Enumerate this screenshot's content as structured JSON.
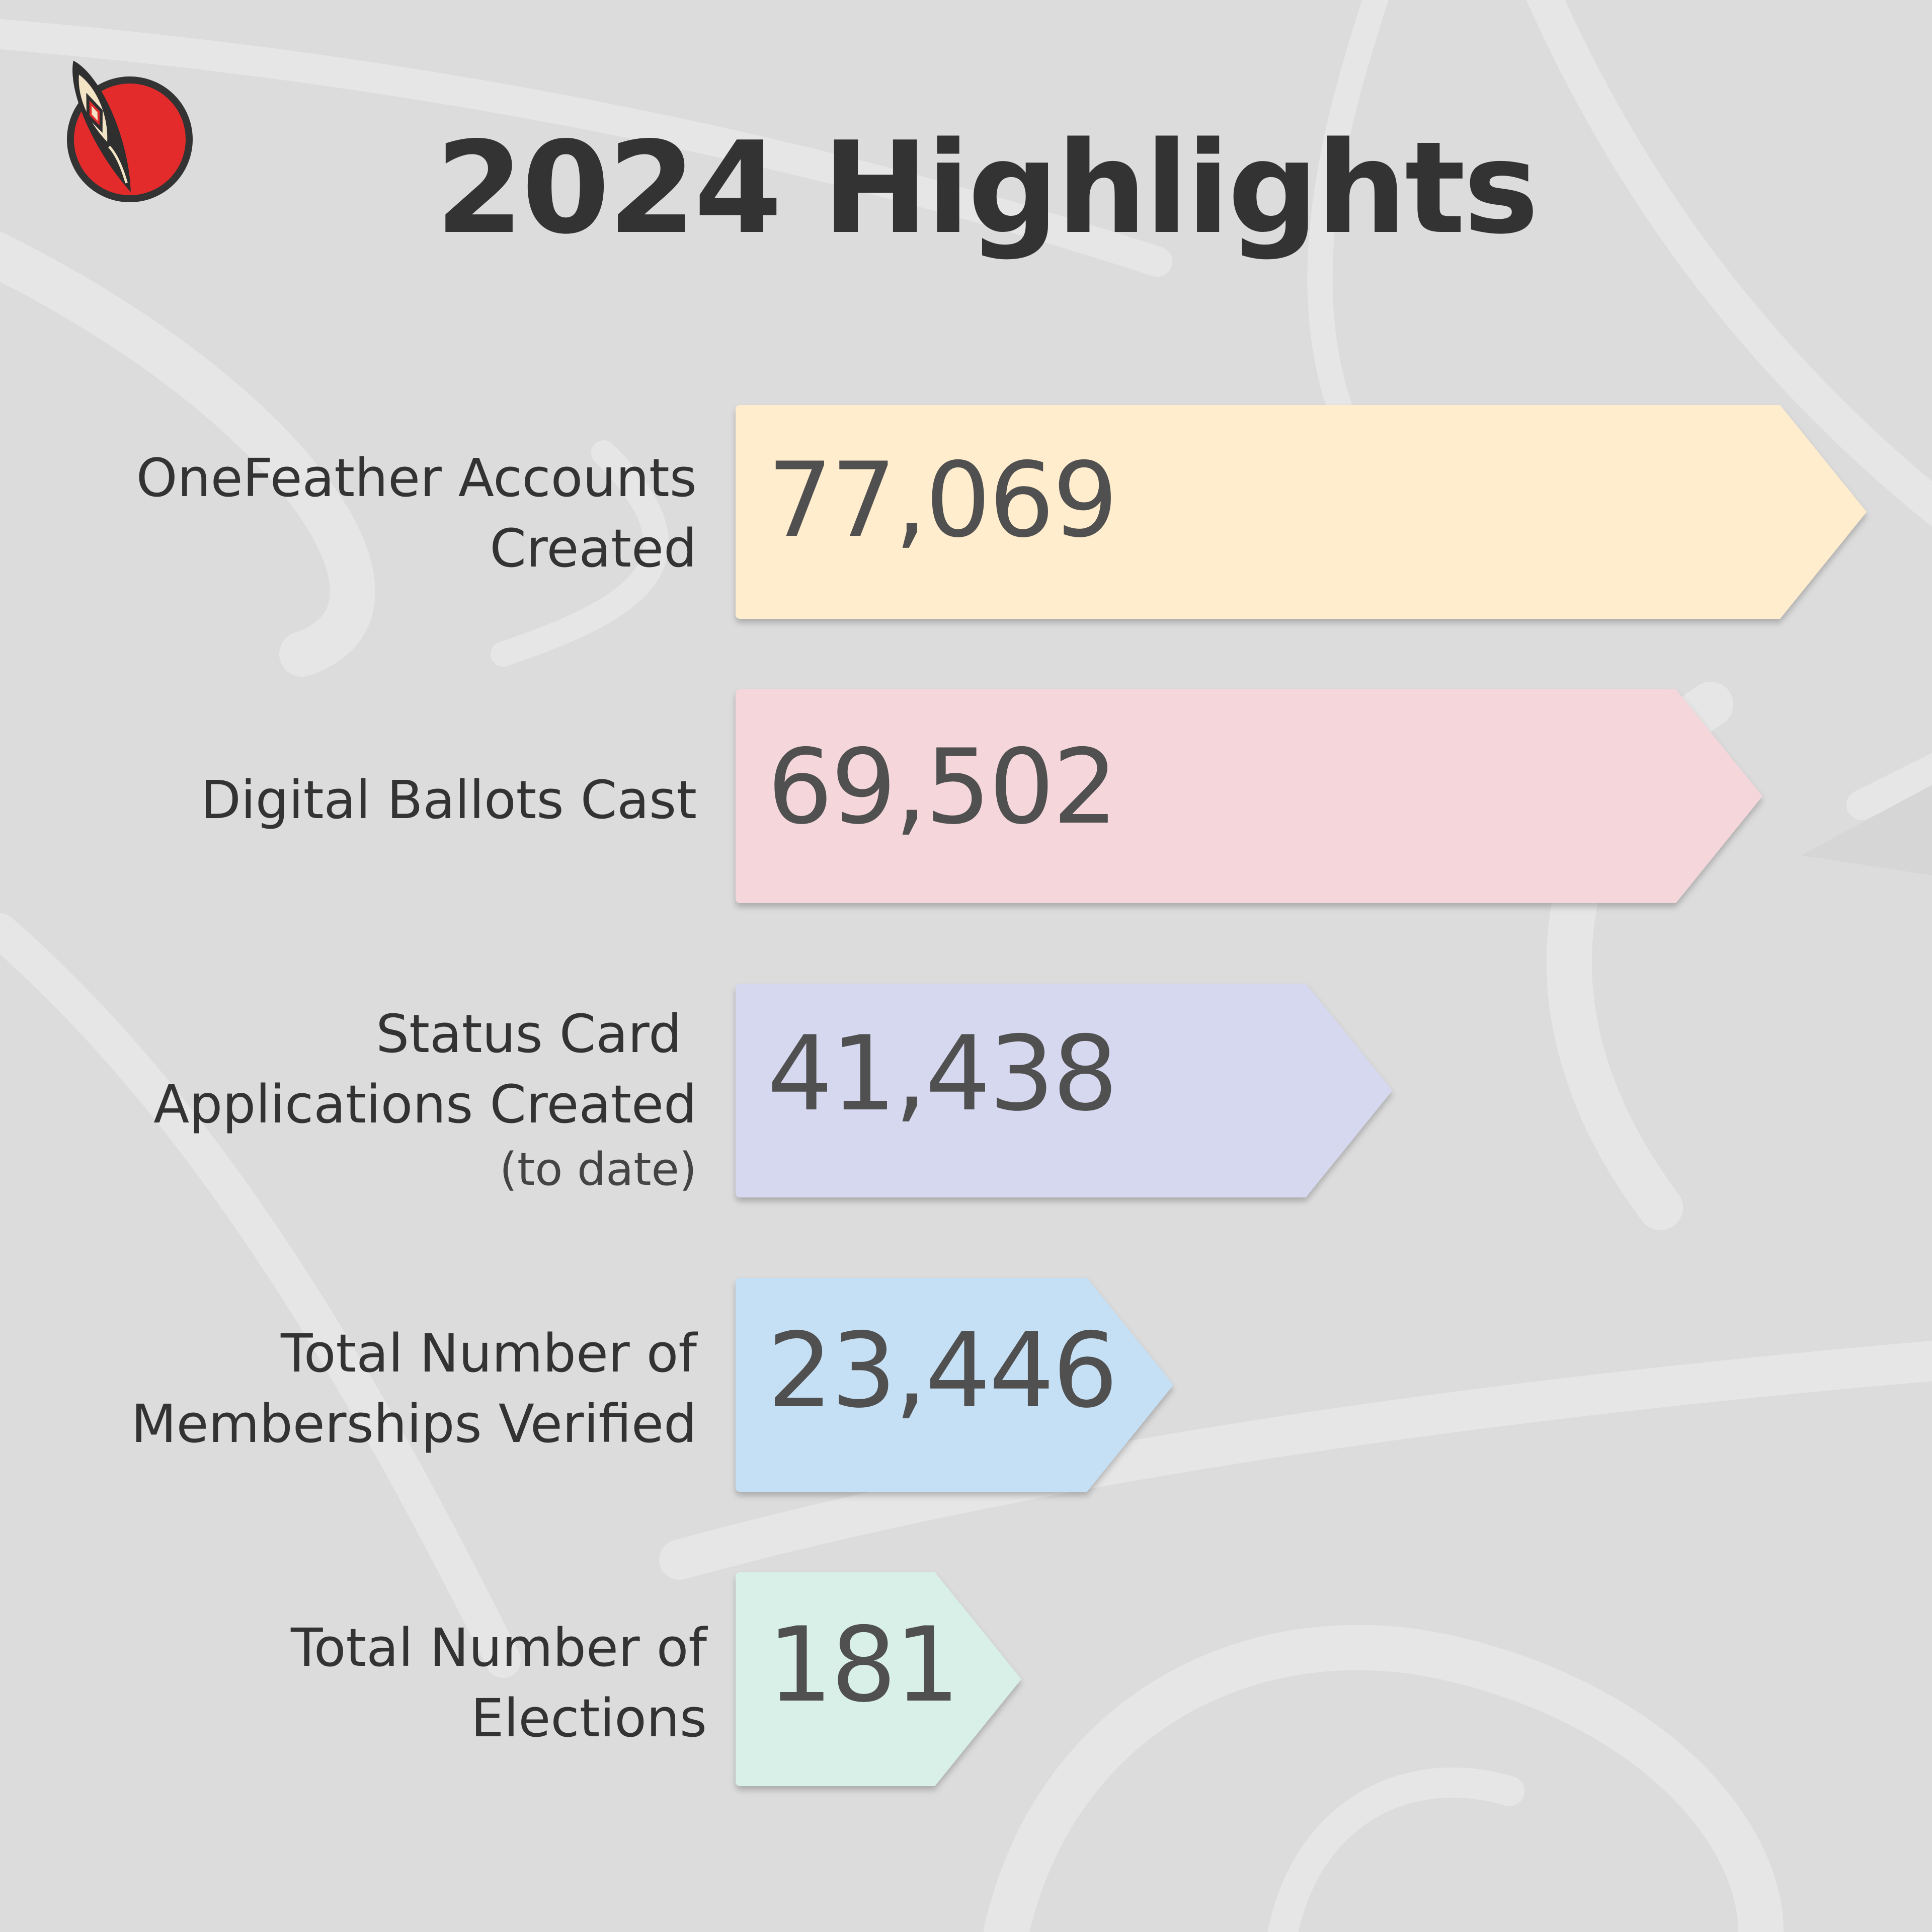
{
  "header": {
    "title": "2024 Highlights",
    "logo_icon": "feather-in-red-circle-icon"
  },
  "colors": {
    "background": "#dcdcdc",
    "text": "#333333",
    "logo_red": "#e32b2b"
  },
  "chart_data": {
    "type": "bar",
    "orientation": "horizontal",
    "title": "2024 Highlights",
    "categories": [
      "OneFeather Accounts Created",
      "Digital Ballots Cast",
      "Status Card Applications Created (to date)",
      "Total Number of Memberships Verified",
      "Total Number of Elections"
    ],
    "values": [
      77069,
      69502,
      41438,
      23446,
      181
    ],
    "value_labels": [
      "77,069",
      "69,502",
      "41,438",
      "23,446",
      "181"
    ],
    "label_lines": [
      [
        "OneFeather Accounts",
        "Created"
      ],
      [
        "Digital Ballots Cast"
      ],
      [
        "Status Card",
        "Applications Created"
      ],
      [
        "Total Number of",
        "Memberships Verified"
      ],
      [
        "Total Number of",
        "Elections"
      ]
    ],
    "label_notes": [
      "",
      "",
      "(to date)",
      "",
      ""
    ],
    "bar_colors": [
      "#ffedcd",
      "#f5d7db",
      "#d5d8ef",
      "#c5e0f5",
      "#d8f0e8"
    ],
    "bar_shape": "arrow",
    "grid": false,
    "legend": "none"
  }
}
